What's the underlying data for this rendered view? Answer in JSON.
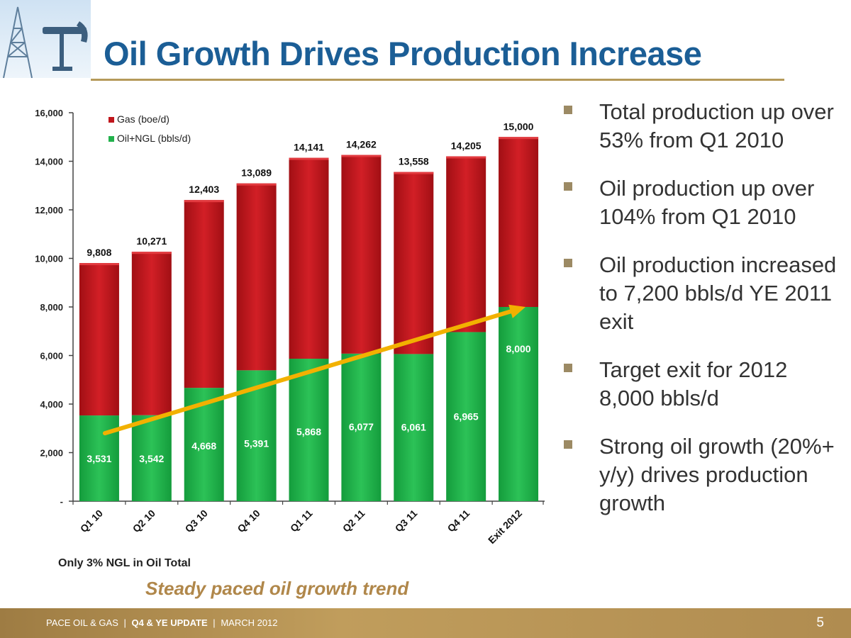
{
  "title": "Oil Growth Drives Production Increase",
  "chart_data": {
    "type": "bar",
    "stacked": true,
    "categories": [
      "Q1 10",
      "Q2 10",
      "Q3 10",
      "Q4 10",
      "Q1 11",
      "Q2 11",
      "Q3 11",
      "Q4 11",
      "Exit 2012"
    ],
    "series": [
      {
        "name": "Oil+NGL (bbls/d)",
        "color": "#22b14c",
        "values": [
          3531,
          3542,
          4668,
          5391,
          5868,
          6077,
          6061,
          6965,
          8000
        ],
        "labels": [
          "3,531",
          "3,542",
          "4,668",
          "5,391",
          "5,868",
          "6,077",
          "6,061",
          "6,965",
          "8,000"
        ]
      },
      {
        "name": "Gas (boe/d)",
        "color": "#c0161c",
        "values": [
          6277,
          6729,
          7735,
          7698,
          8273,
          8185,
          7497,
          7240,
          7000
        ]
      }
    ],
    "totals": [
      9808,
      10271,
      12403,
      13089,
      14141,
      14262,
      13558,
      14205,
      15000
    ],
    "total_labels": [
      "9,808",
      "10,271",
      "12,403",
      "13,089",
      "14,141",
      "14,262",
      "13,558",
      "14,205",
      "15,000"
    ],
    "ylim": [
      0,
      16000
    ],
    "yticks": [
      0,
      2000,
      4000,
      6000,
      8000,
      10000,
      12000,
      14000,
      16000
    ],
    "ytick_labels": [
      "-",
      "2,000",
      "4,000",
      "6,000",
      "8,000",
      "10,000",
      "12,000",
      "14,000",
      "16,000"
    ],
    "legend": {
      "position": "top-left",
      "entries": [
        "Gas (boe/d)",
        "Oil+NGL (bbls/d)"
      ]
    },
    "trend_arrow": {
      "color": "#f2b100",
      "from": [
        "Q1 10",
        2800
      ],
      "to": [
        "Exit 2012",
        8000
      ]
    },
    "grid": false
  },
  "bullets": [
    "Total production up over 53% from Q1 2010",
    "Oil production up over 104% from Q1 2010",
    "Oil production increased to 7,200 bbls/d YE 2011 exit",
    "Target exit for 2012 8,000 bbls/d",
    "Strong oil growth (20%+ y/y) drives production growth"
  ],
  "note": "Only 3% NGL in Oil Total",
  "trend_caption": "Steady paced oil growth trend",
  "footer": {
    "company": "PACE OIL & GAS",
    "update": "Q4 & YE UPDATE",
    "date": "MARCH 2012",
    "sep": "|"
  },
  "page_number": "5",
  "colors": {
    "title": "#1b5e96",
    "accent": "#b59a5a",
    "gas": "#c0161c",
    "oil": "#22b14c",
    "arrow": "#f2b100"
  }
}
